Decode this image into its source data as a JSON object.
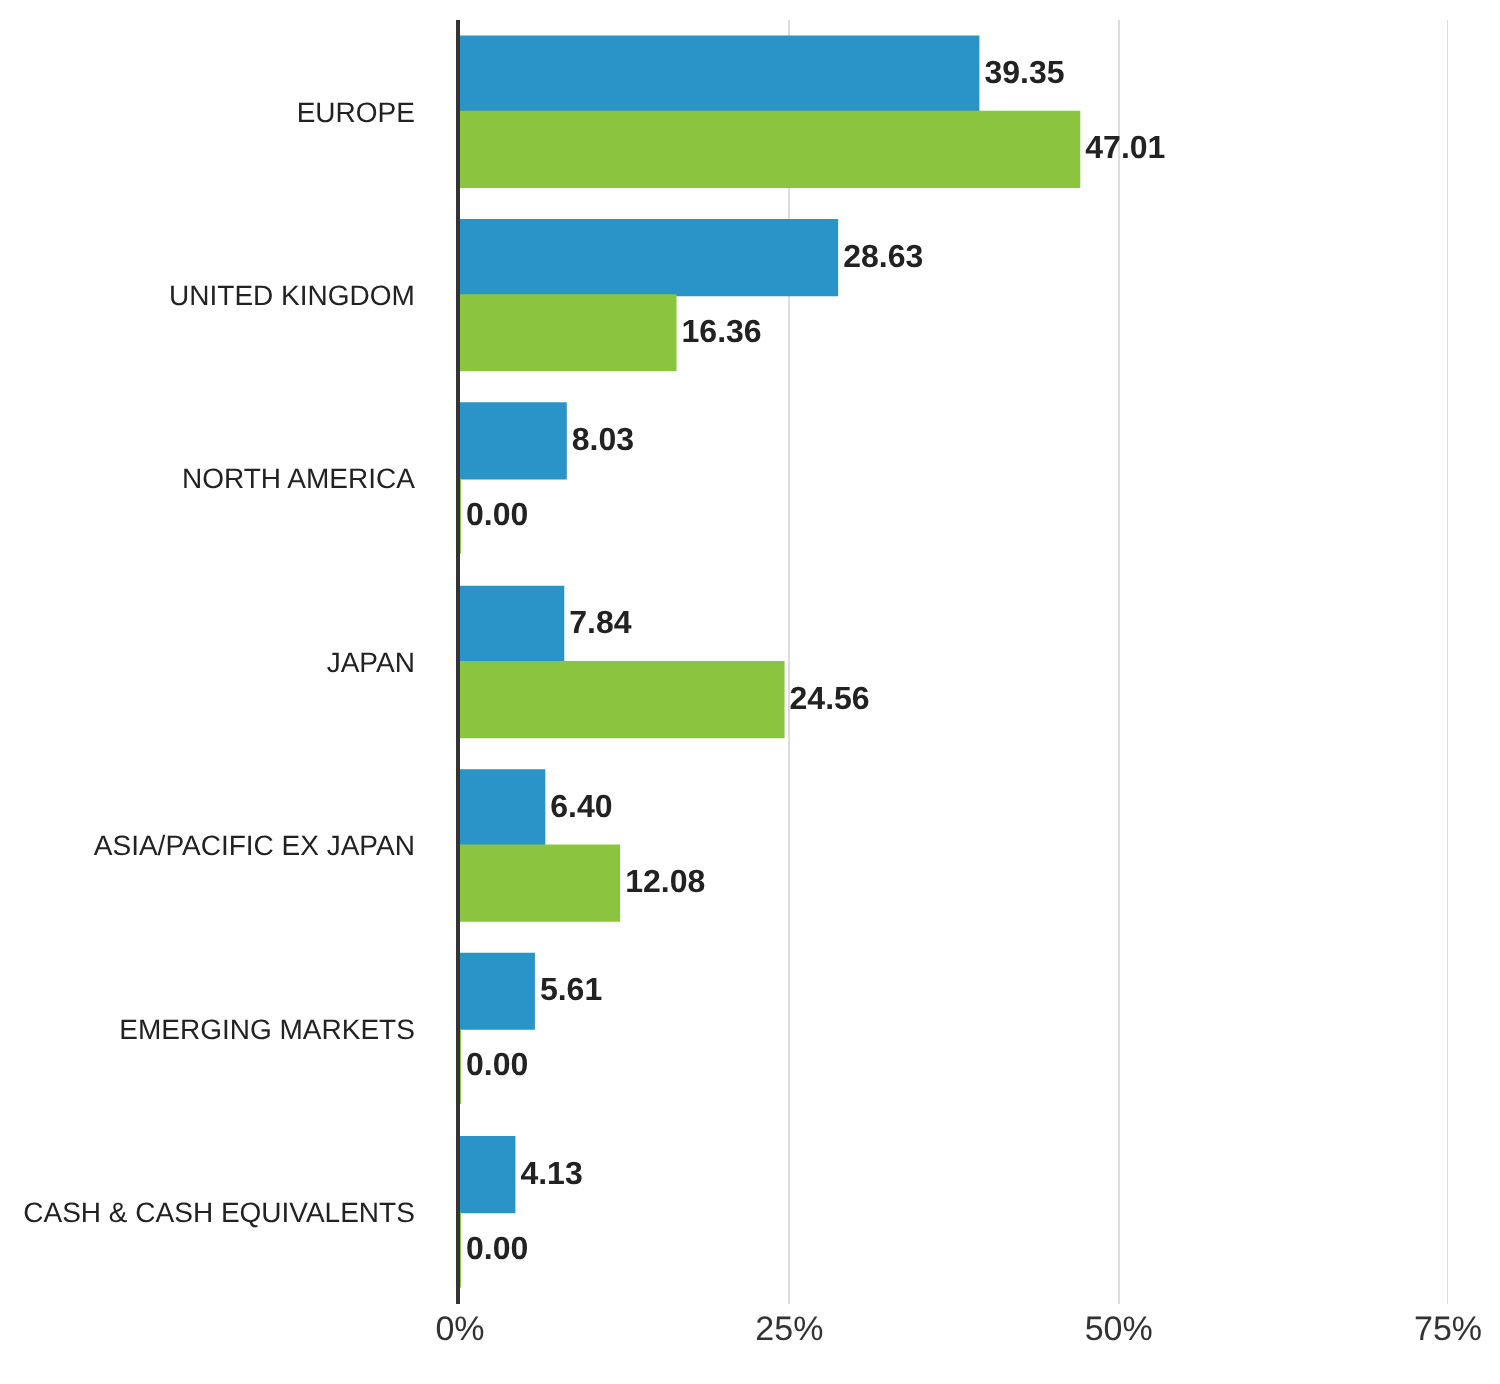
{
  "chart_data": {
    "type": "bar",
    "orientation": "horizontal",
    "categories": [
      "EUROPE",
      "UNITED KINGDOM",
      "NORTH AMERICA",
      "JAPAN",
      "ASIA/PACIFIC EX JAPAN",
      "EMERGING MARKETS",
      "CASH & CASH EQUIVALENTS"
    ],
    "series": [
      {
        "color": "#2a93c8",
        "values": [
          39.35,
          28.63,
          8.03,
          7.84,
          6.4,
          5.61,
          4.13
        ],
        "value_labels": [
          "39.35",
          "28.63",
          "8.03",
          "7.84",
          "6.40",
          "5.61",
          "4.13"
        ]
      },
      {
        "color": "#8bc53f",
        "values": [
          47.01,
          16.36,
          0.0,
          24.56,
          12.08,
          0.0,
          0.0
        ],
        "value_labels": [
          "47.01",
          "16.36",
          "0.00",
          "24.56",
          "12.08",
          "0.00",
          "0.00"
        ]
      }
    ],
    "xlim": [
      0,
      75
    ],
    "xticks": [
      {
        "value": 0,
        "label": "0%"
      },
      {
        "value": 25,
        "label": "25%"
      },
      {
        "value": 50,
        "label": "50%"
      },
      {
        "value": 75,
        "label": "75%"
      }
    ],
    "grid": "x"
  }
}
